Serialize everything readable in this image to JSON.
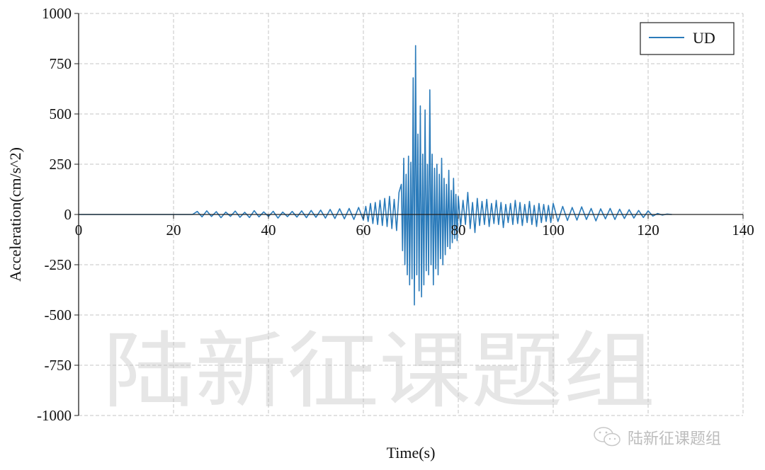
{
  "chart_data": {
    "type": "line",
    "xlabel": "Time(s)",
    "ylabel": "Acceleration(cm/s^2)",
    "xlim": [
      0,
      140
    ],
    "ylim": [
      -1000,
      1000
    ],
    "xticks": [
      "0",
      "20",
      "40",
      "60",
      "80",
      "100",
      "120",
      "140"
    ],
    "yticks": [
      "1000",
      "750",
      "500",
      "250",
      "0",
      "-250",
      "-500",
      "-750",
      "-1000"
    ],
    "grid": true,
    "legend": {
      "placement": "top-right",
      "entries": [
        "UD"
      ]
    },
    "series": [
      {
        "name": "UD",
        "color": "#2b7bba",
        "segments": [
          {
            "t0": 0,
            "dt": 24,
            "values": [
              0,
              0
            ]
          },
          {
            "t0": 25,
            "dt": 1,
            "values": [
              15,
              -12,
              18,
              -10,
              14,
              -16,
              12,
              -9,
              17,
              -14,
              11,
              -15,
              19,
              -12,
              13,
              -10,
              16,
              -18,
              12,
              -11,
              15,
              -13,
              18,
              -16,
              20,
              -14,
              22,
              -18,
              25,
              -20,
              28,
              -22,
              30,
              -25,
              35,
              -28
            ]
          },
          {
            "t0": 60.5,
            "dt": 0.5,
            "values": [
              40,
              -35,
              55,
              -45,
              60,
              -50,
              70,
              -55,
              80,
              -60,
              90,
              -70,
              75,
              -80,
              110
            ]
          },
          {
            "t0": 68,
            "dt": 0.25,
            "values": [
              150,
              -180,
              280,
              -250,
              200,
              -300,
              290,
              -350,
              260,
              -320,
              680,
              -450,
              840,
              -300,
              400,
              -380,
              540,
              -410,
              300,
              -350,
              520,
              -280,
              250,
              -300,
              620,
              -250,
              300,
              -350,
              230,
              -270,
              250,
              -300,
              200,
              -220,
              280,
              -250,
              180,
              -200,
              150,
              -160,
              220,
              -170,
              120,
              -140,
              180,
              -120,
              100,
              -130,
              90
            ]
          },
          {
            "t0": 80.5,
            "dt": 0.5,
            "values": [
              -60,
              70,
              -50,
              110,
              -70,
              60,
              -90,
              80,
              -55,
              65,
              -50,
              75,
              -60,
              55,
              -45,
              70,
              -50,
              60,
              -65,
              50,
              -40,
              55,
              -50,
              70,
              -45,
              60,
              -55,
              50,
              -40,
              65,
              -50,
              45,
              -60,
              55,
              -40,
              50,
              -35,
              45,
              -40,
              55
            ]
          },
          {
            "t0": 101,
            "dt": 1,
            "values": [
              -35,
              40,
              -30,
              35,
              -28,
              38,
              -25,
              30,
              -32,
              28,
              -22,
              30,
              -25,
              26,
              -20,
              24,
              -18,
              20,
              -15,
              18,
              -8,
              5,
              -3,
              2,
              0
            ]
          }
        ]
      }
    ]
  },
  "watermark": "陆新征课题组",
  "credit": {
    "icon": "wechat-icon",
    "text": "陆新征课题组"
  }
}
